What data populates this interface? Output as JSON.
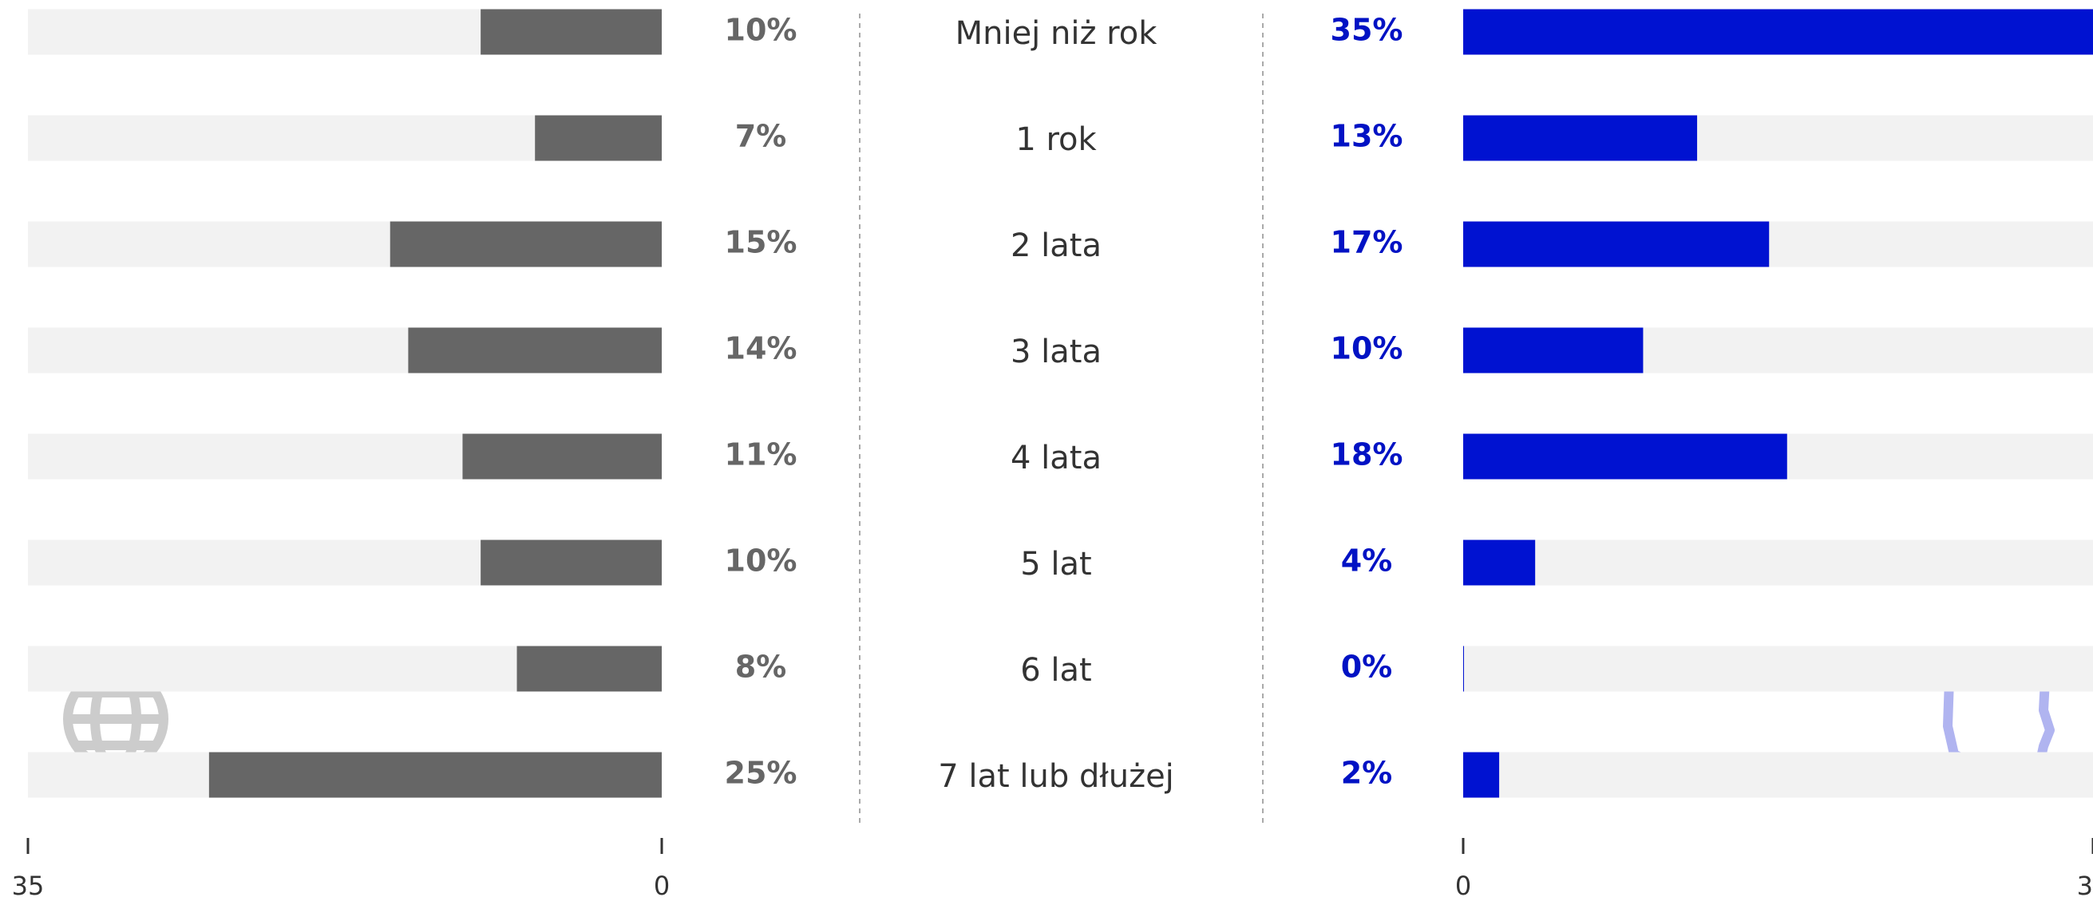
{
  "chart_data": {
    "type": "bar",
    "orientation": "horizontal",
    "categories": [
      "Mniej niż rok",
      "1 rok",
      "2 lata",
      "3 lata",
      "4 lata",
      "5 lat",
      "6 lat",
      "7 lat lub dłużej"
    ],
    "xlim": [
      0,
      35
    ],
    "xticks": [
      0,
      35
    ],
    "series": [
      {
        "color": "#666666",
        "label_color": "#666666",
        "values": [
          10,
          7,
          15,
          14,
          11,
          10,
          8,
          25
        ],
        "value_labels": [
          "10%",
          "7%",
          "15%",
          "14%",
          "11%",
          "10%",
          "8%",
          "25%"
        ]
      },
      {
        "color": "#0012d1",
        "label_color": "#0012c4",
        "values": [
          35,
          13,
          17,
          10,
          18,
          4,
          0,
          2
        ],
        "value_labels": [
          "35%",
          "13%",
          "17%",
          "10%",
          "18%",
          "4%",
          "0%",
          "2%"
        ]
      }
    ]
  }
}
